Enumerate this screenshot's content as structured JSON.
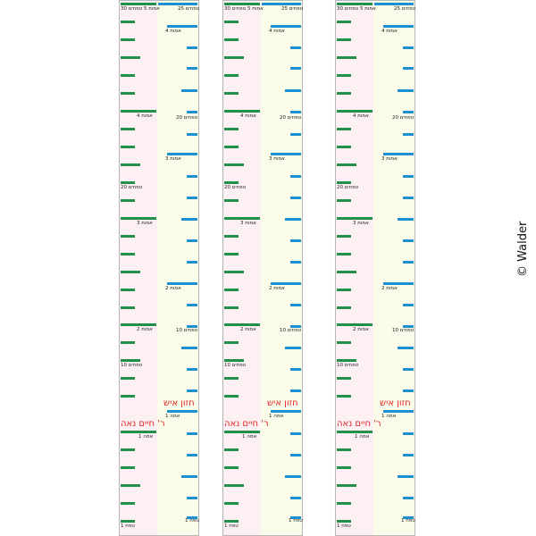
{
  "strip_labels": {
    "top_left_tefachim": "30 טפחים",
    "top_left_amot": "5 אמות",
    "top_right_tefachim": "25 טפחים",
    "amot_4_right": "4 אמות",
    "amot_4_left": "4 אמות",
    "tefachim_20_right": "20 טפחים",
    "amot_3_right": "3 אמות",
    "tefachim_20_left": "20 טפחים",
    "amot_3_left": "3 אמות",
    "amot_2_right": "2 אמות",
    "amot_2_left": "2 אמות",
    "tefachim_10_right": "10 טפחים",
    "tefachim_10_left": "10 טפחים",
    "amah_1_right": "1 אמה",
    "amah_1_left": "1 אמה",
    "tefach_1_right": "1 טפח",
    "tefach_1_left": "1 טפח",
    "chazon_ish": "חזון איש",
    "chaim_noeh": "ר' חיים נאה"
  },
  "copyright": "© Walder",
  "colors": {
    "green": "#1f8f4a",
    "blue": "#1e8fd0",
    "red": "#e12b2b",
    "pink": "#fdf0f3",
    "cream": "#fbfbe9"
  }
}
